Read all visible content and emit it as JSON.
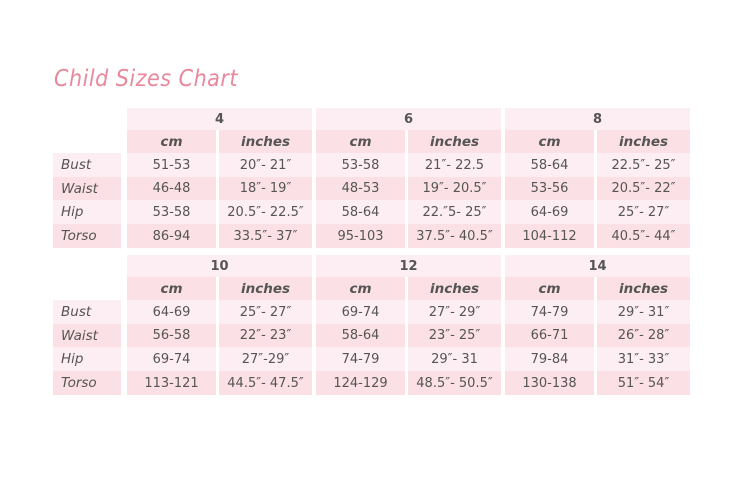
{
  "title": "Child Sizes Chart",
  "unit_labels": {
    "cm": "cm",
    "inches": "inches"
  },
  "measurements": [
    "Bust",
    "Waist",
    "Hip",
    "Torso"
  ],
  "colors": {
    "title": "#e9889c",
    "row_light": "#fdeef3",
    "row_dark": "#fbe1e6",
    "text": "#555555"
  },
  "blocks": [
    {
      "sizes": [
        {
          "size": "4",
          "cm": [
            "51-53",
            "46-48",
            "53-58",
            "86-94"
          ],
          "inches": [
            "20″- 21″",
            "18″- 19″",
            "20.5″- 22.5″",
            "33.5″- 37″"
          ]
        },
        {
          "size": "6",
          "cm": [
            "53-58",
            "48-53",
            "58-64",
            "95-103"
          ],
          "inches": [
            "21″- 22.5",
            "19″- 20.5″",
            "22.″5- 25″",
            "37.5″- 40.5″"
          ]
        },
        {
          "size": "8",
          "cm": [
            "58-64",
            "53-56",
            "64-69",
            "104-112"
          ],
          "inches": [
            "22.5″- 25″",
            "20.5″- 22″",
            "25″- 27″",
            "40.5″- 44″"
          ]
        }
      ]
    },
    {
      "sizes": [
        {
          "size": "10",
          "cm": [
            "64-69",
            "56-58",
            "69-74",
            "113-121"
          ],
          "inches": [
            "25″- 27″",
            "22″- 23″",
            "27″-29″",
            "44.5″- 47.5″"
          ]
        },
        {
          "size": "12",
          "cm": [
            "69-74",
            "58-64",
            "74-79",
            "124-129"
          ],
          "inches": [
            "27″- 29″",
            "23″- 25″",
            "29″- 31",
            "48.5″- 50.5″"
          ]
        },
        {
          "size": "14",
          "cm": [
            "74-79",
            "66-71",
            "79-84",
            "130-138"
          ],
          "inches": [
            "29″- 31″",
            "26″- 28″",
            "31″- 33″",
            "51″- 54″"
          ]
        }
      ]
    }
  ]
}
